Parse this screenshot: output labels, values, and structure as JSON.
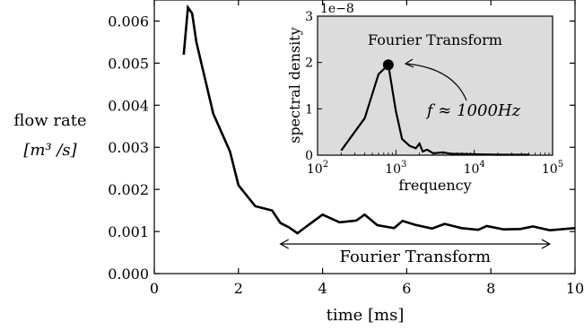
{
  "chart_data": [
    {
      "type": "line",
      "xlabel": "time [ms]",
      "ylabel_line1": "flow rate",
      "ylabel_line2": "[m³ /s]",
      "xlim": [
        0,
        10
      ],
      "ylim": [
        0,
        0.0065
      ],
      "xticks": [
        0,
        2,
        4,
        6,
        8,
        10
      ],
      "xtick_labels": [
        "0",
        "2",
        "4",
        "6",
        "8",
        "10"
      ],
      "yticks": [
        0.0,
        0.001,
        0.002,
        0.003,
        0.004,
        0.005,
        0.006
      ],
      "ytick_labels": [
        "0.000",
        "0.001",
        "0.002",
        "0.003",
        "0.004",
        "0.005",
        "0.006"
      ],
      "grid": false,
      "x": [
        0.7,
        0.8,
        0.9,
        1.0,
        1.4,
        1.8,
        2.0,
        2.4,
        2.8,
        3.0,
        3.2,
        3.4,
        3.7,
        4.0,
        4.4,
        4.8,
        5.0,
        5.3,
        5.7,
        5.9,
        6.2,
        6.6,
        6.9,
        7.3,
        7.7,
        7.9,
        8.3,
        8.7,
        9.0,
        9.4,
        10.0
      ],
      "y": [
        0.0052,
        0.00632,
        0.00618,
        0.0055,
        0.0038,
        0.0029,
        0.0021,
        0.0016,
        0.0015,
        0.0012,
        0.0011,
        0.00096,
        0.00118,
        0.0014,
        0.00122,
        0.00126,
        0.0014,
        0.00115,
        0.00108,
        0.00125,
        0.00116,
        0.00107,
        0.00118,
        0.00108,
        0.00104,
        0.00113,
        0.00105,
        0.00106,
        0.00112,
        0.00103,
        0.00108
      ],
      "annotation": "Fourier Transform",
      "annotation_span": [
        3.0,
        9.4
      ]
    },
    {
      "type": "line",
      "title": "Fourier Transform",
      "xlabel": "frequency",
      "ylabel": "spectral density",
      "scale_label": "1e−8",
      "xscale": "log",
      "xlim": [
        100,
        100000
      ],
      "ylim": [
        0,
        3
      ],
      "xtick_exponents": [
        2,
        3,
        4,
        5
      ],
      "xtick_base": "10",
      "yticks": [
        0,
        1,
        2,
        3
      ],
      "ytick_labels": [
        "0",
        "1",
        "2",
        "3"
      ],
      "background": "#dcdcdc",
      "x": [
        200,
        400,
        600,
        800,
        1000,
        1200,
        1500,
        1800,
        2000,
        2200,
        2500,
        3000,
        4000,
        5000,
        10000,
        20000,
        50000
      ],
      "y": [
        0.1,
        0.8,
        1.75,
        1.95,
        0.95,
        0.35,
        0.2,
        0.15,
        0.25,
        0.08,
        0.12,
        0.04,
        0.06,
        0.03,
        0.02,
        0.01,
        0.01
      ],
      "peak": {
        "x": 800,
        "y": 1.95
      },
      "peak_annotation": "f ≈ 1000Hz"
    }
  ]
}
